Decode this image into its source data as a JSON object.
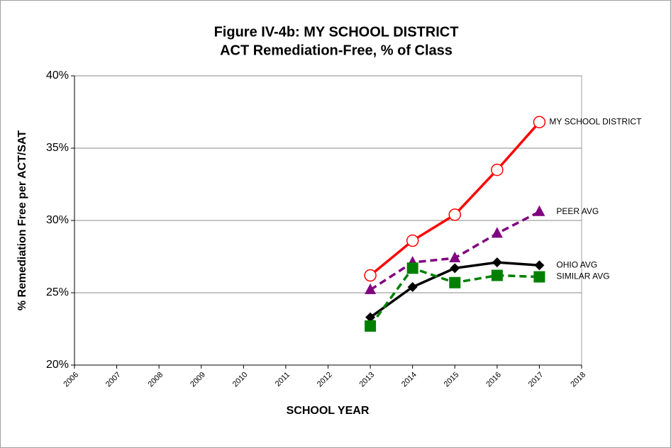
{
  "chart_data": {
    "type": "line",
    "title": "Figure IV-4b: MY SCHOOL DISTRICT",
    "subtitle": "ACT Remediation-Free, % of Class",
    "y_label": "% Remediation Free per ACT/SAT",
    "x_label": "SCHOOL YEAR",
    "x": [
      2013,
      2014,
      2015,
      2016,
      2017
    ],
    "xlim": [
      2006,
      2018
    ],
    "xticks": [
      2006,
      2007,
      2008,
      2009,
      2010,
      2011,
      2012,
      2013,
      2014,
      2015,
      2016,
      2017,
      2018
    ],
    "ylim": [
      20,
      40
    ],
    "yticks": [
      {
        "value": 20,
        "label": "20%"
      },
      {
        "value": 25,
        "label": "25%"
      },
      {
        "value": 30,
        "label": "30%"
      },
      {
        "value": 35,
        "label": "35%"
      },
      {
        "value": 40,
        "label": "40%"
      }
    ],
    "grid": true,
    "series": [
      {
        "name": "MY SCHOOL DISTRICT",
        "color": "#ff0000",
        "marker": "circle",
        "dashed": false,
        "values": [
          26.2,
          28.6,
          30.4,
          33.5,
          36.8
        ]
      },
      {
        "name": "PEER AVG",
        "color": "#800080",
        "marker": "triangle",
        "dashed": true,
        "values": [
          25.2,
          27.1,
          27.4,
          29.1,
          30.6
        ]
      },
      {
        "name": "OHIO AVG",
        "color": "#000000",
        "marker": "diamond",
        "dashed": false,
        "values": [
          23.3,
          25.4,
          26.7,
          27.1,
          26.9
        ]
      },
      {
        "name": "SIMILAR AVG",
        "color": "#008000",
        "marker": "square",
        "dashed": true,
        "values": [
          22.7,
          26.7,
          25.7,
          26.2,
          26.1
        ]
      }
    ]
  }
}
